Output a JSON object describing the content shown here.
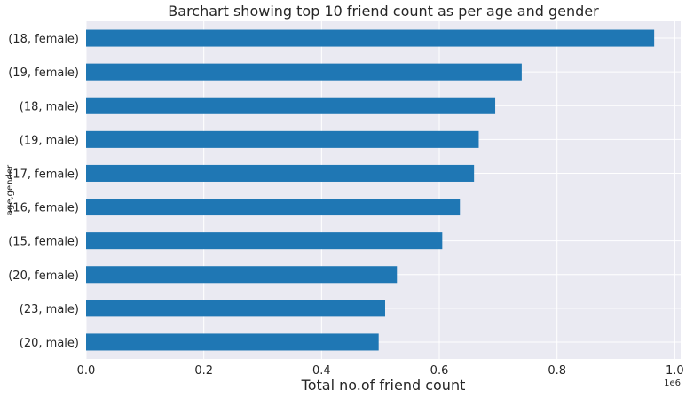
{
  "chart_data": {
    "type": "bar",
    "orientation": "horizontal",
    "title": "Barchart showing top 10 friend count as per age and gender",
    "xlabel": "Total no.of friend count",
    "ylabel": "age,gender",
    "x_offset_label": "1e6",
    "xlim": [
      0,
      1.01
    ],
    "x_ticks": [
      "0.0",
      "0.2",
      "0.4",
      "0.6",
      "0.8",
      "1.0"
    ],
    "x_tick_values": [
      0,
      0.2,
      0.4,
      0.6,
      0.8,
      1.0
    ],
    "grid": true,
    "bar_color": "#1f77b4",
    "background": "#eaeaf2",
    "categories": [
      "(18, female)",
      "(19, female)",
      "(18, male)",
      "(19, male)",
      "(17, female)",
      "(16, female)",
      "(15, female)",
      "(20, female)",
      "(23, male)",
      "(20, male)"
    ],
    "values": [
      0.965,
      0.74,
      0.695,
      0.667,
      0.659,
      0.635,
      0.605,
      0.528,
      0.508,
      0.497
    ]
  }
}
